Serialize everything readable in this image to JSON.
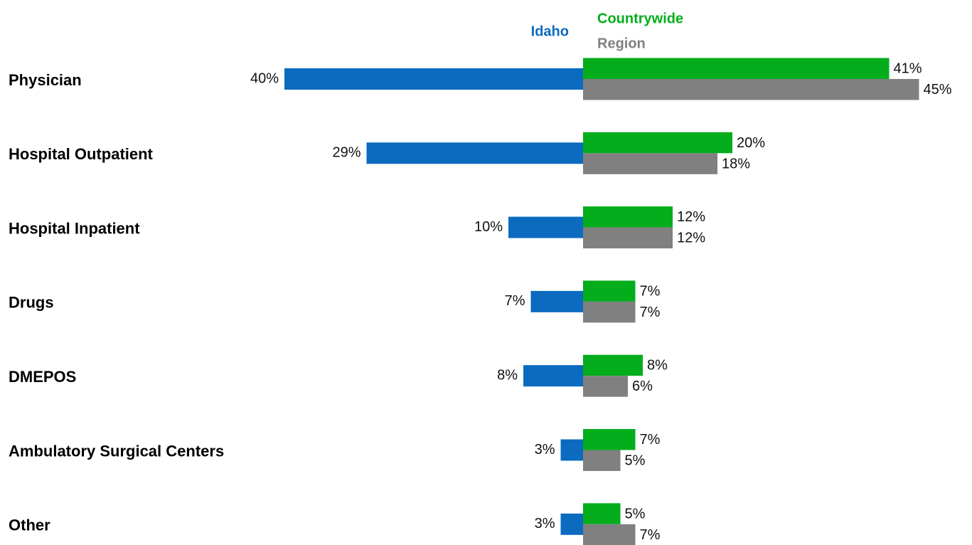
{
  "chart_data": {
    "type": "bar",
    "categories": [
      "Physician",
      "Hospital Outpatient",
      "Hospital Inpatient",
      "Drugs",
      "DMEPOS",
      "Ambulatory Surgical Centers",
      "Other"
    ],
    "series": [
      {
        "name": "Idaho",
        "color": "#0a6bbf",
        "values": [
          40,
          29,
          10,
          7,
          8,
          3,
          3
        ],
        "value_labels": [
          "40%",
          "29%",
          "10%",
          "7%",
          "8%",
          "3%",
          "3%"
        ]
      },
      {
        "name": "Countrywide",
        "color": "#03ad1c",
        "values": [
          41,
          20,
          12,
          7,
          8,
          7,
          5
        ],
        "value_labels": [
          "41%",
          "20%",
          "12%",
          "7%",
          "8%",
          "7%",
          "5%"
        ]
      },
      {
        "name": "Region",
        "color": "#808080",
        "values": [
          45,
          18,
          12,
          7,
          6,
          5,
          7
        ],
        "value_labels": [
          "45%",
          "18%",
          "12%",
          "7%",
          "6%",
          "5%",
          "7%"
        ]
      }
    ]
  }
}
